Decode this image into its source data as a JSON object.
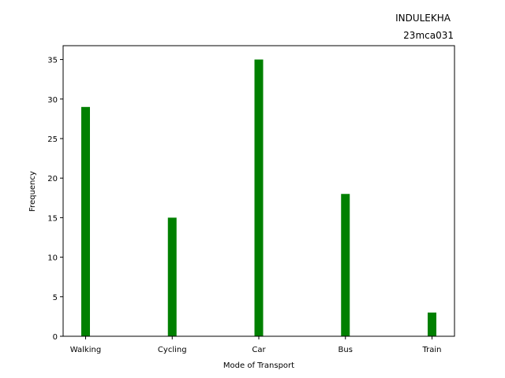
{
  "chart_data": {
    "type": "bar",
    "title_lines": [
      "INDULEKHA",
      "23mca031"
    ],
    "xlabel": "Mode of Transport",
    "ylabel": "Frequency",
    "categories": [
      "Walking",
      "Cycling",
      "Car",
      "Bus",
      "Train"
    ],
    "values": [
      29,
      15,
      35,
      18,
      3
    ],
    "ylim": [
      0,
      36.75
    ],
    "yticks": [
      0,
      5,
      10,
      15,
      20,
      25,
      30,
      35
    ],
    "bar_color": "#008000",
    "grid": false
  }
}
